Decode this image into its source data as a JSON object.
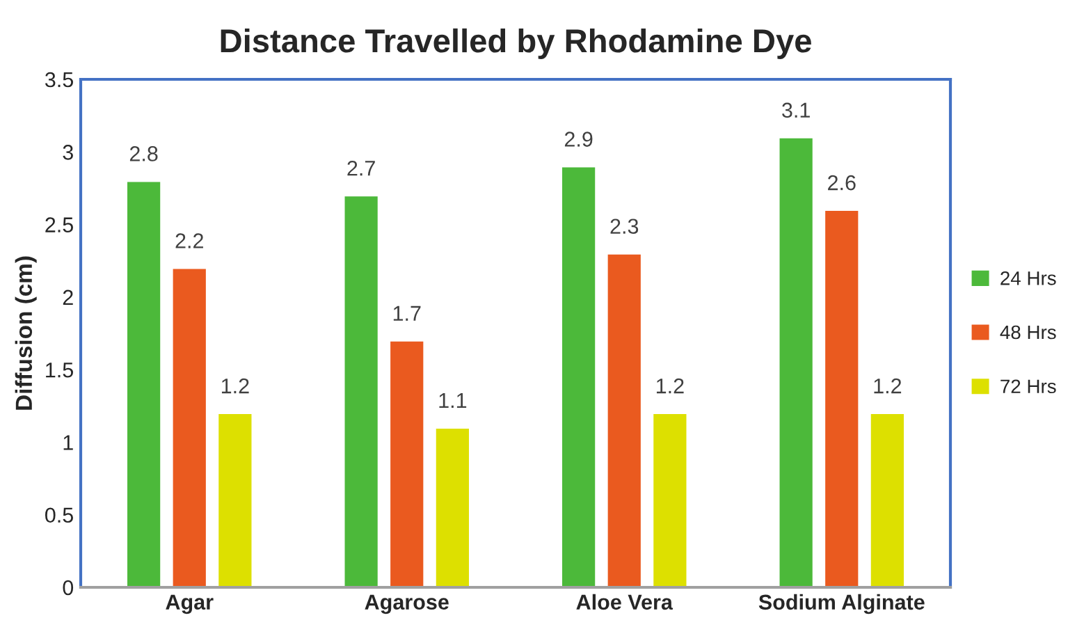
{
  "chart_data": {
    "type": "bar",
    "title": "Distance Travelled by Rhodamine Dye",
    "ylabel": "Diffusion (cm)",
    "categories": [
      "Agar",
      "Agarose",
      "Aloe Vera",
      "Sodium Alginate"
    ],
    "series": [
      {
        "name": "24 Hrs",
        "color": "#4cb93a",
        "values": [
          2.8,
          2.7,
          2.9,
          3.1
        ]
      },
      {
        "name": "48 Hrs",
        "color": "#ea5a1f",
        "values": [
          2.2,
          1.7,
          2.3,
          2.6
        ]
      },
      {
        "name": "72 Hrs",
        "color": "#dde000",
        "values": [
          1.2,
          1.1,
          1.2,
          1.2
        ]
      }
    ],
    "ylim": [
      0,
      3.5
    ],
    "yticks": [
      0,
      0.5,
      1,
      1.5,
      2,
      2.5,
      3,
      3.5
    ],
    "grid": false,
    "legend": "right",
    "data_labels": true
  }
}
